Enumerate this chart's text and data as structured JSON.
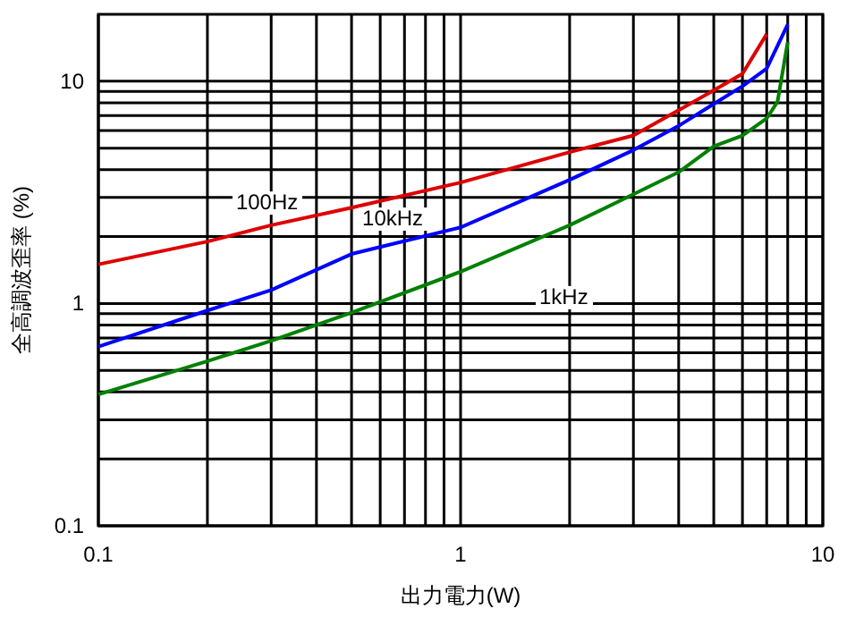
{
  "chart_data": {
    "type": "line",
    "xlabel": "出力電力(W)",
    "ylabel": "全高調波歪率 (%)",
    "log": "xy",
    "grid": true,
    "marker": "none",
    "line_style": "solid",
    "xlim": [
      0.1,
      10
    ],
    "ylim": [
      0.1,
      20
    ],
    "xticks": [
      0.1,
      {
        "value": 0.2,
        "label": null
      },
      {
        "value": 0.3,
        "label": null
      },
      {
        "value": 0.4,
        "label": null
      },
      {
        "value": 0.5,
        "label": null
      },
      {
        "value": 0.6,
        "label": null
      },
      {
        "value": 0.7,
        "label": null
      },
      {
        "value": 0.8,
        "label": null
      },
      {
        "value": 0.9,
        "label": null
      },
      1,
      {
        "value": 2,
        "label": null
      },
      {
        "value": 3,
        "label": null
      },
      {
        "value": 4,
        "label": null
      },
      {
        "value": 5,
        "label": null
      },
      {
        "value": 6,
        "label": null
      },
      {
        "value": 7,
        "label": null
      },
      {
        "value": 8,
        "label": null
      },
      {
        "value": 9,
        "label": null
      },
      10
    ],
    "yticks": [
      0.1,
      {
        "value": 0.2,
        "label": null
      },
      {
        "value": 0.3,
        "label": null
      },
      {
        "value": 0.4,
        "label": null
      },
      {
        "value": 0.5,
        "label": null
      },
      {
        "value": 0.6,
        "label": null
      },
      {
        "value": 0.7,
        "label": null
      },
      {
        "value": 0.8,
        "label": null
      },
      {
        "value": 0.9,
        "label": null
      },
      1,
      {
        "value": 2,
        "label": null
      },
      {
        "value": 3,
        "label": null
      },
      {
        "value": 4,
        "label": null
      },
      {
        "value": 5,
        "label": null
      },
      {
        "value": 6,
        "label": null
      },
      {
        "value": 7,
        "label": null
      },
      {
        "value": 8,
        "label": null
      },
      {
        "value": 9,
        "label": null
      },
      10
    ],
    "series": [
      {
        "name": "100Hz",
        "color": "#dd0000",
        "x": [
          0.1,
          0.2,
          0.3,
          0.5,
          1,
          2,
          3,
          4,
          5,
          6,
          7
        ],
        "values": [
          1.5,
          1.9,
          2.25,
          2.7,
          3.5,
          4.8,
          5.7,
          7.4,
          9.1,
          10.8,
          16.3
        ]
      },
      {
        "name": "10kHz",
        "color": "#0000ff",
        "x": [
          0.1,
          0.2,
          0.3,
          0.5,
          1,
          2,
          3,
          4,
          5,
          6,
          7,
          8
        ],
        "values": [
          0.64,
          0.93,
          1.15,
          1.67,
          2.2,
          3.6,
          4.9,
          6.3,
          7.9,
          9.5,
          11.4,
          18
        ]
      },
      {
        "name": "1kHz",
        "color": "#008000",
        "x": [
          0.1,
          0.2,
          0.3,
          0.5,
          1,
          2,
          3,
          4,
          5,
          6,
          7,
          7.5,
          8
        ],
        "values": [
          0.39,
          0.55,
          0.68,
          0.91,
          1.39,
          2.25,
          3.1,
          3.9,
          5.1,
          5.7,
          6.8,
          8.1,
          15
        ]
      }
    ]
  }
}
